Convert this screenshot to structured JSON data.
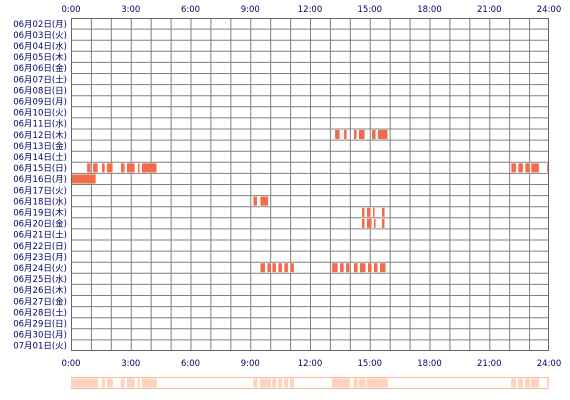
{
  "chart_data": {
    "type": "heatmap",
    "x_tick_labels": [
      "0:00",
      "3:00",
      "6:00",
      "9:00",
      "12:00",
      "15:00",
      "18:00",
      "21:00",
      "24:00"
    ],
    "xlim_hours": [
      0,
      24
    ],
    "rows": [
      "06月02日(月)",
      "06月03日(火)",
      "06月04日(水)",
      "06月05日(木)",
      "06月06日(金)",
      "06月07日(土)",
      "06月08日(日)",
      "06月09日(月)",
      "06月10日(火)",
      "06月11日(水)",
      "06月12日(木)",
      "06月13日(金)",
      "06月14日(土)",
      "06月15日(日)",
      "06月16日(月)",
      "06月17日(火)",
      "06月18日(水)",
      "06月19日(木)",
      "06月20日(金)",
      "06月21日(土)",
      "06月22日(日)",
      "06月23日(月)",
      "06月24日(火)",
      "06月25日(水)",
      "06月26日(木)",
      "06月27日(金)",
      "06月28日(土)",
      "06月29日(日)",
      "06月30日(月)",
      "07月01日(火)"
    ],
    "activity": [
      {
        "row": 10,
        "start": 13.25,
        "end": 13.5
      },
      {
        "row": 10,
        "start": 13.7,
        "end": 13.85
      },
      {
        "row": 10,
        "start": 14.2,
        "end": 14.35
      },
      {
        "row": 10,
        "start": 14.45,
        "end": 14.75
      },
      {
        "row": 10,
        "start": 15.1,
        "end": 15.3
      },
      {
        "row": 10,
        "start": 15.4,
        "end": 15.9
      },
      {
        "row": 13,
        "start": 0.8,
        "end": 1.0
      },
      {
        "row": 13,
        "start": 1.1,
        "end": 1.35
      },
      {
        "row": 13,
        "start": 1.55,
        "end": 1.7
      },
      {
        "row": 13,
        "start": 1.8,
        "end": 2.1
      },
      {
        "row": 13,
        "start": 2.5,
        "end": 2.7
      },
      {
        "row": 13,
        "start": 2.8,
        "end": 3.2
      },
      {
        "row": 13,
        "start": 3.35,
        "end": 3.45
      },
      {
        "row": 13,
        "start": 3.55,
        "end": 4.3
      },
      {
        "row": 13,
        "start": 22.1,
        "end": 22.35
      },
      {
        "row": 13,
        "start": 22.45,
        "end": 22.7
      },
      {
        "row": 13,
        "start": 22.8,
        "end": 23.05
      },
      {
        "row": 13,
        "start": 23.1,
        "end": 23.5
      },
      {
        "row": 13,
        "start": 23.9,
        "end": 24.0
      },
      {
        "row": 14,
        "start": 0.0,
        "end": 1.25
      },
      {
        "row": 16,
        "start": 9.15,
        "end": 9.35
      },
      {
        "row": 16,
        "start": 9.5,
        "end": 9.9
      },
      {
        "row": 17,
        "start": 14.6,
        "end": 14.75
      },
      {
        "row": 17,
        "start": 14.85,
        "end": 15.05
      },
      {
        "row": 17,
        "start": 15.15,
        "end": 15.25
      },
      {
        "row": 17,
        "start": 15.6,
        "end": 15.75
      },
      {
        "row": 18,
        "start": 14.6,
        "end": 14.75
      },
      {
        "row": 18,
        "start": 14.85,
        "end": 15.1
      },
      {
        "row": 18,
        "start": 15.2,
        "end": 15.3
      },
      {
        "row": 18,
        "start": 15.6,
        "end": 15.75
      },
      {
        "row": 22,
        "start": 9.5,
        "end": 9.75
      },
      {
        "row": 22,
        "start": 9.85,
        "end": 10.05
      },
      {
        "row": 22,
        "start": 10.1,
        "end": 10.3
      },
      {
        "row": 22,
        "start": 10.4,
        "end": 10.6
      },
      {
        "row": 22,
        "start": 10.7,
        "end": 10.9
      },
      {
        "row": 22,
        "start": 11.0,
        "end": 11.2
      },
      {
        "row": 22,
        "start": 13.1,
        "end": 13.4
      },
      {
        "row": 22,
        "start": 13.5,
        "end": 13.7
      },
      {
        "row": 22,
        "start": 13.8,
        "end": 14.0
      },
      {
        "row": 22,
        "start": 14.2,
        "end": 14.4
      },
      {
        "row": 22,
        "start": 14.5,
        "end": 14.8
      },
      {
        "row": 22,
        "start": 14.9,
        "end": 15.1
      },
      {
        "row": 22,
        "start": 15.2,
        "end": 15.4
      },
      {
        "row": 22,
        "start": 15.5,
        "end": 15.8
      }
    ],
    "colors": {
      "activity": "#f26b4b",
      "activity_edge": "#ffffff",
      "grid": "#808080",
      "frame": "#666666",
      "text": "#000066",
      "summary_frame": "#ffb898",
      "summary_fill": "#ffd2bd"
    }
  }
}
